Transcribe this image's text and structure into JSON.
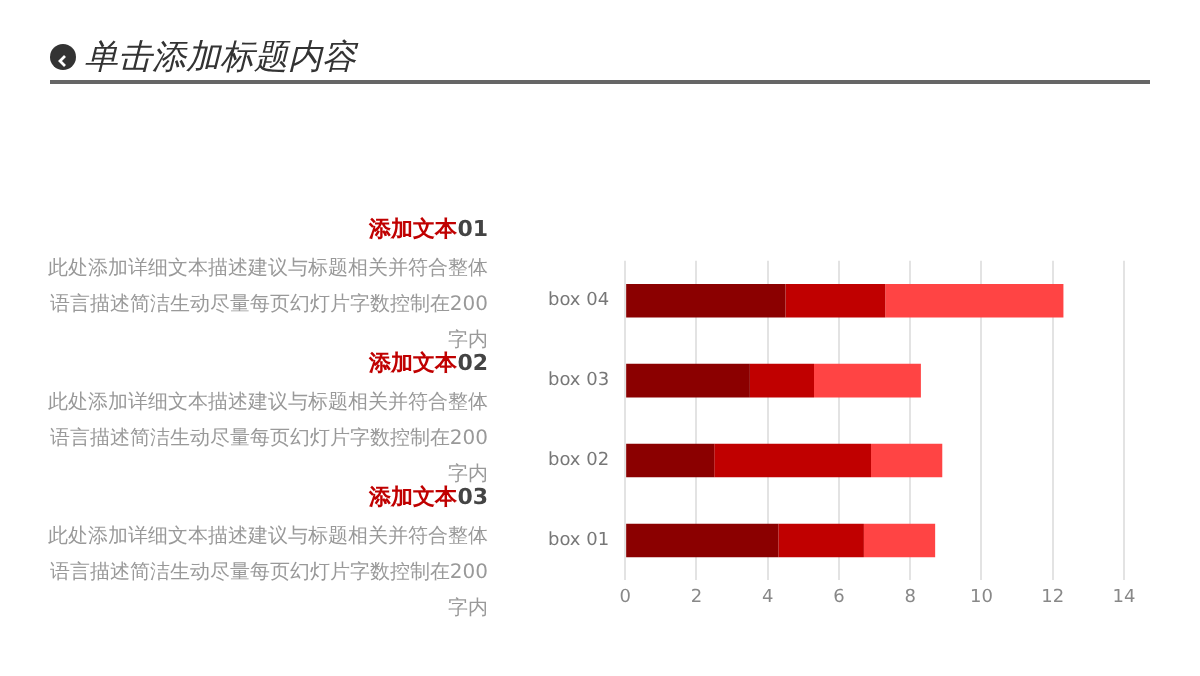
{
  "chart_data": {
    "type": "bar",
    "orientation": "horizontal",
    "stacked": true,
    "title": "单击添加标题内容",
    "categories": [
      "box 04",
      "box 03",
      "box 02",
      "box 01"
    ],
    "series": [
      {
        "color": "#8b0000",
        "values": [
          4.5,
          3.5,
          2.5,
          4.3
        ]
      },
      {
        "color": "#c00000",
        "values": [
          2.8,
          1.8,
          4.4,
          2.4
        ]
      },
      {
        "color": "#ff4444",
        "values": [
          5.0,
          3.0,
          2.0,
          2.0
        ]
      }
    ],
    "xlim": [
      0,
      14
    ],
    "xticks": [
      0,
      2,
      4,
      6,
      8,
      10,
      12,
      14
    ],
    "grid": "x",
    "legend": false,
    "annotations": [
      "添加文本01",
      "此处添加详细文本描述建议与标题相关并符合整体语言描述简洁生动尽量每页幻灯片字数控制在200字内",
      "添加文本02",
      "此处添加详细文本描述建议与标题相关并符合整体语言描述简洁生动尽量每页幻灯片字数控制在200字内",
      "添加文本03",
      "此处添加详细文本描述建议与标题相关并符合整体语言描述简洁生动尽量每页幻灯片字数控制在200字内"
    ]
  }
}
